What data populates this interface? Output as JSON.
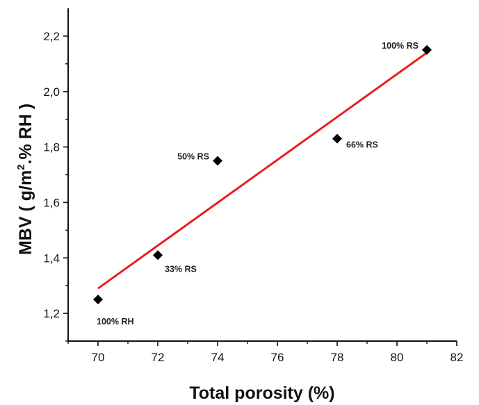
{
  "chart_data": {
    "type": "scatter",
    "title": "",
    "xlabel": "Total porosity (%)",
    "ylabel_main": "MBV ( g/m",
    "ylabel_sup": "2",
    "ylabel_rest": ".% RH )",
    "xlim": [
      69,
      82
    ],
    "ylim": [
      1.1,
      2.3
    ],
    "x_ticks": [
      70,
      72,
      74,
      76,
      78,
      80,
      82
    ],
    "x_tick_labels": [
      "70",
      "72",
      "74",
      "76",
      "78",
      "80",
      "82"
    ],
    "y_ticks": [
      1.2,
      1.4,
      1.6,
      1.8,
      2.0,
      2.2
    ],
    "y_tick_labels": [
      "1,2",
      "1,4",
      "1,6",
      "1,8",
      "2,0",
      "2,2"
    ],
    "grid": false,
    "marker_color": "#000000",
    "points": [
      {
        "x": 70,
        "y": 1.25,
        "label": "100% RH",
        "label_pos": "below-right"
      },
      {
        "x": 72,
        "y": 1.41,
        "label": "33% RS",
        "label_pos": "below-right"
      },
      {
        "x": 74,
        "y": 1.75,
        "label": "50% RS",
        "label_pos": "left"
      },
      {
        "x": 78,
        "y": 1.83,
        "label": "66% RS",
        "label_pos": "right"
      },
      {
        "x": 81,
        "y": 2.15,
        "label": "100% RS",
        "label_pos": "left"
      }
    ],
    "fit_line": {
      "color": "#e8211a",
      "x_start": 70,
      "y_start": 1.29,
      "x_end": 81,
      "y_end": 2.14
    }
  }
}
